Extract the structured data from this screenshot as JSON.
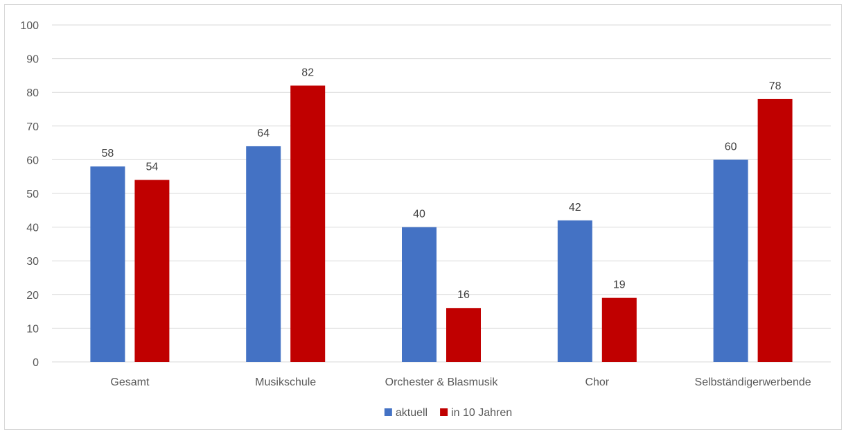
{
  "chart_data": {
    "type": "bar",
    "categories": [
      "Gesamt",
      "Musikschule",
      "Orchester & Blasmusik",
      "Chor",
      "Selbständigerwerbende"
    ],
    "series": [
      {
        "name": "aktuell",
        "values": [
          58,
          64,
          40,
          42,
          60
        ],
        "color": "#4472c4"
      },
      {
        "name": "in 10 Jahren",
        "values": [
          54,
          82,
          16,
          19,
          78
        ],
        "color": "#c00000"
      }
    ],
    "yticks": [
      0,
      10,
      20,
      30,
      40,
      50,
      60,
      70,
      80,
      90,
      100
    ],
    "ylim": [
      0,
      100
    ],
    "grid": true,
    "legend_position": "bottom",
    "data_labels": true
  },
  "colors": {
    "gridline": "#d9d9d9",
    "text": "#595959",
    "frame": "#d9d9d9"
  }
}
